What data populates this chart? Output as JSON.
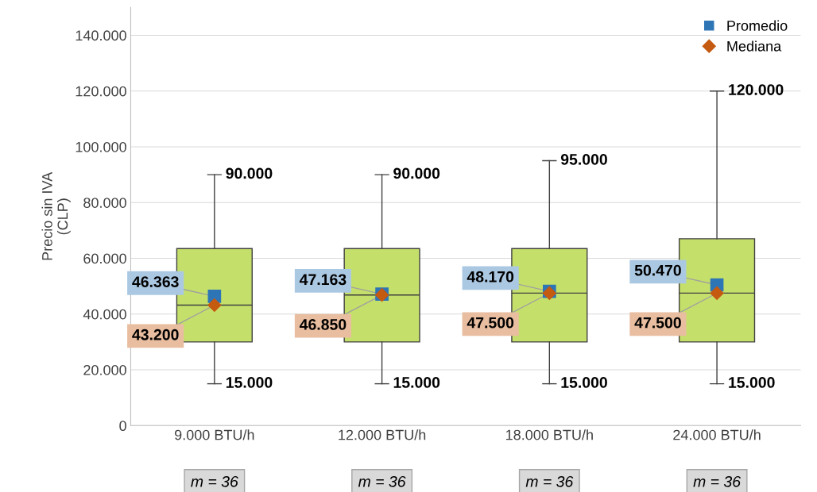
{
  "chart_data": {
    "type": "box",
    "ylabel": "Precio sin IVA\n(CLP)",
    "categories": [
      "9.000 BTU/h",
      "12.000 BTU/h",
      "18.000 BTU/h",
      "24.000 BTU/h"
    ],
    "boxes": [
      {
        "low": 15000,
        "q1": 30000,
        "median": 43200,
        "q3": 63500,
        "high": 90000
      },
      {
        "low": 15000,
        "q1": 30000,
        "median": 46850,
        "q3": 63500,
        "high": 90000
      },
      {
        "low": 15000,
        "q1": 30000,
        "median": 47500,
        "q3": 63500,
        "high": 95000
      },
      {
        "low": 15000,
        "q1": 30000,
        "median": 47500,
        "q3": 67000,
        "high": 120000
      }
    ],
    "color": "#c5e06a",
    "series": [
      {
        "name": "Promedio",
        "type": "scatter",
        "marker": "square",
        "color": "#2e75b6",
        "values": [
          46363,
          47163,
          48170,
          50470
        ],
        "value_labels": [
          "46.363",
          "47.163",
          "48.170",
          "50.470"
        ]
      },
      {
        "name": "Mediana",
        "type": "scatter",
        "marker": "diamond",
        "color": "#c55a11",
        "values": [
          43200,
          46850,
          47500,
          47500
        ],
        "value_labels": [
          "43.200",
          "46.850",
          "47.500",
          "47.500"
        ]
      }
    ],
    "ylim": [
      0,
      150000
    ],
    "yticks": [
      0,
      {
        "value": 20000,
        "label": "20.000"
      },
      {
        "value": 40000,
        "label": "40.000"
      },
      {
        "value": 60000,
        "label": "60.000"
      },
      {
        "value": 80000,
        "label": "80.000"
      },
      {
        "value": 100000,
        "label": "100.000"
      },
      {
        "value": 120000,
        "label": "120.000"
      },
      {
        "value": 140000,
        "label": "140.000"
      }
    ],
    "grid": "y",
    "legend": "top right",
    "annotations": [
      "m = 36",
      "m = 36",
      "m = 36",
      "m = 36",
      {
        "text": "90.000",
        "x": "9.000 BTU/h",
        "y": 90000
      },
      {
        "text": "15.000",
        "x": "9.000 BTU/h",
        "y": 15000
      },
      {
        "text": "90.000",
        "x": "12.000 BTU/h",
        "y": 90000
      },
      {
        "text": "15.000",
        "x": "12.000 BTU/h",
        "y": 15000
      },
      {
        "text": "95.000",
        "x": "18.000 BTU/h",
        "y": 95000
      },
      {
        "text": "15.000",
        "x": "18.000 BTU/h",
        "y": 15000
      },
      {
        "text": "120.000",
        "x": "24.000 BTU/h",
        "y": 120000
      },
      {
        "text": "15.000",
        "x": "24.000 BTU/h",
        "y": 15000
      }
    ]
  }
}
